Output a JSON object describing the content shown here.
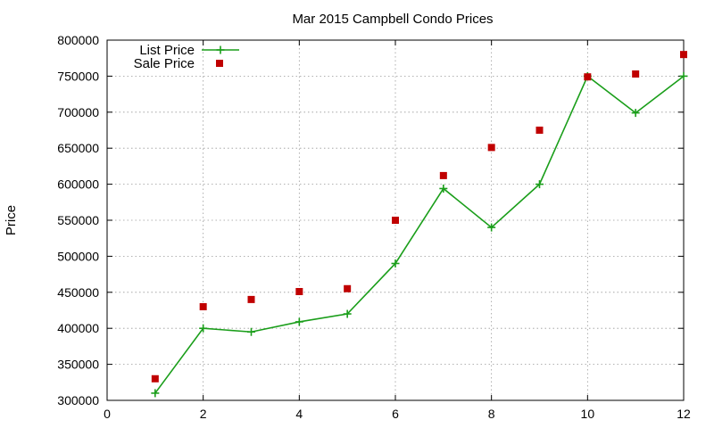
{
  "chart_data": {
    "type": "line",
    "title": "Mar 2015 Campbell Condo Prices",
    "xlabel": "",
    "ylabel": "Price",
    "xlim": [
      0,
      12
    ],
    "ylim": [
      300000,
      800000
    ],
    "x_ticks": [
      0,
      2,
      4,
      6,
      8,
      10,
      12
    ],
    "y_ticks": [
      300000,
      350000,
      400000,
      450000,
      500000,
      550000,
      600000,
      650000,
      700000,
      750000,
      800000
    ],
    "grid": true,
    "legend_position": "top-left",
    "series": [
      {
        "name": "List Price",
        "style": "line+cross",
        "color": "#1a9e1a",
        "points": [
          {
            "x": 1,
            "y": 310000
          },
          {
            "x": 2,
            "y": 400000
          },
          {
            "x": 3,
            "y": 395000
          },
          {
            "x": 4,
            "y": 409000
          },
          {
            "x": 5,
            "y": 420000
          },
          {
            "x": 6,
            "y": 490000
          },
          {
            "x": 7,
            "y": 594000
          },
          {
            "x": 8,
            "y": 540000
          },
          {
            "x": 9,
            "y": 600000
          },
          {
            "x": 10,
            "y": 750000
          },
          {
            "x": 11,
            "y": 699000
          },
          {
            "x": 12,
            "y": 750000
          }
        ]
      },
      {
        "name": "Sale Price",
        "style": "square-marker",
        "color": "#c00000",
        "points": [
          {
            "x": 1,
            "y": 330000
          },
          {
            "x": 2,
            "y": 430000
          },
          {
            "x": 3,
            "y": 440000
          },
          {
            "x": 4,
            "y": 451000
          },
          {
            "x": 5,
            "y": 455000
          },
          {
            "x": 6,
            "y": 550000
          },
          {
            "x": 7,
            "y": 612000
          },
          {
            "x": 8,
            "y": 651000
          },
          {
            "x": 9,
            "y": 675000
          },
          {
            "x": 10,
            "y": 749000
          },
          {
            "x": 11,
            "y": 753000
          },
          {
            "x": 12,
            "y": 780000
          }
        ]
      }
    ]
  }
}
